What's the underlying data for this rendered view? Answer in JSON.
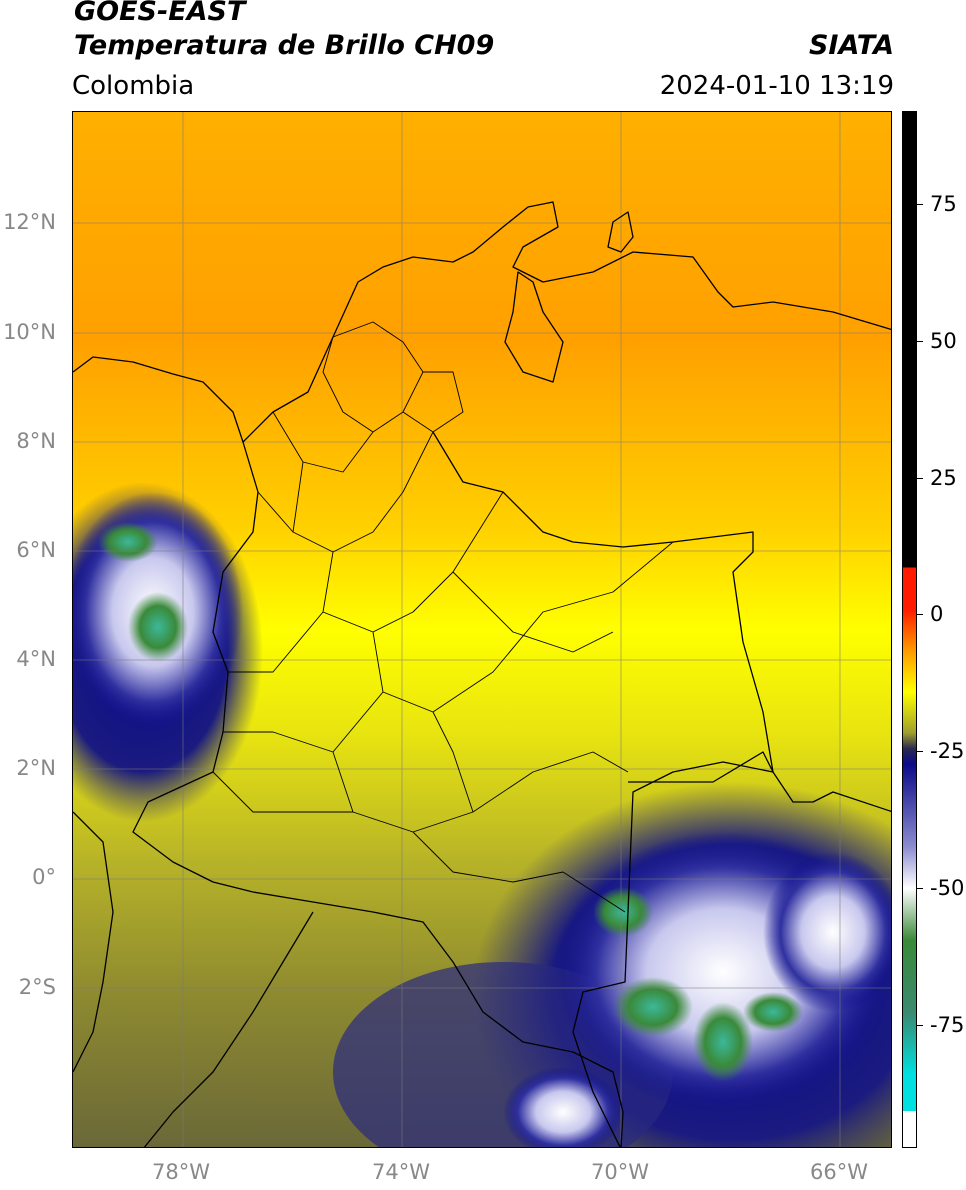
{
  "header": {
    "title_line1": "GOES-EAST",
    "title_line2": "Temperatura de Brillo CH09",
    "agency": "SIATA",
    "region": "Colombia",
    "datetime": "2024-01-10 13:19"
  },
  "map": {
    "lon_labels": [
      "78°W",
      "74°W",
      "70°W",
      "66°W"
    ],
    "lat_labels": [
      "12°N",
      "10°N",
      "8°N",
      "6°N",
      "4°N",
      "2°N",
      "0°",
      "2°S"
    ]
  },
  "colorbar": {
    "labels": [
      "75",
      "50",
      "25",
      "0",
      "-25",
      "-50",
      "-75"
    ],
    "colors": {
      "black": "#000000",
      "red": "#ff1a00",
      "orange": "#ff9900",
      "yellow": "#ffff00",
      "olive": "#9e9e2e",
      "navy": "#0b0b8a",
      "white": "#ffffff",
      "green": "#3a8a3a",
      "cyan": "#00e0e0"
    }
  }
}
